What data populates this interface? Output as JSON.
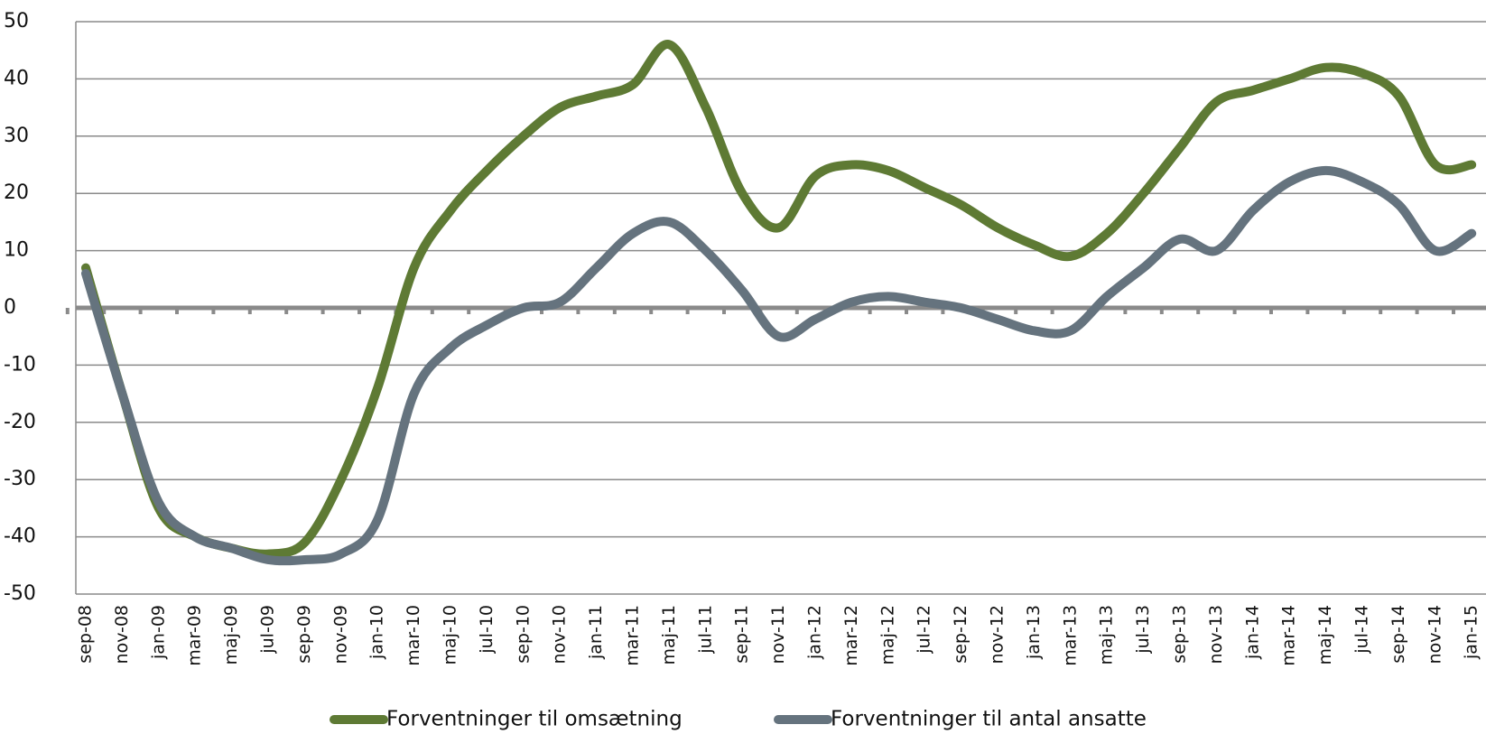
{
  "chart_data": {
    "type": "line",
    "categories": [
      "sep-08",
      "nov-08",
      "jan-09",
      "mar-09",
      "maj-09",
      "jul-09",
      "sep-09",
      "nov-09",
      "jan-10",
      "mar-10",
      "maj-10",
      "jul-10",
      "sep-10",
      "nov-10",
      "jan-11",
      "mar-11",
      "maj-11",
      "jul-11",
      "sep-11",
      "nov-11",
      "jan-12",
      "mar-12",
      "maj-12",
      "jul-12",
      "sep-12",
      "nov-12",
      "jan-13",
      "mar-13",
      "maj-13",
      "jul-13",
      "sep-13",
      "nov-13",
      "jan-14",
      "mar-14",
      "maj-14",
      "jul-14",
      "sep-14",
      "nov-14",
      "jan-15"
    ],
    "series": [
      {
        "name": "Forventninger til omsætning",
        "color": "#5e7a34",
        "values": [
          7,
          -15,
          -35,
          -40,
          -42,
          -43,
          -41,
          -30,
          -14,
          7,
          17,
          24,
          30,
          35,
          37,
          39,
          46,
          35,
          20,
          14,
          23,
          25,
          24,
          21,
          18,
          14,
          11,
          9,
          13,
          20,
          28,
          36,
          38,
          40,
          42,
          41,
          37,
          25,
          25
        ]
      },
      {
        "name": "Forventninger til antal ansatte",
        "color": "#65737e",
        "values": [
          6,
          -15,
          -34,
          -40,
          -42,
          -44,
          -44,
          -43,
          -37,
          -15,
          -7,
          -3,
          0,
          1,
          7,
          13,
          15,
          10,
          3,
          -5,
          -2,
          1,
          2,
          1,
          0,
          -2,
          -4,
          -4,
          2,
          7,
          12,
          10,
          17,
          22,
          24,
          22,
          18,
          10,
          13
        ]
      }
    ],
    "ylim": [
      -50,
      50
    ],
    "yticks": [
      -50,
      -40,
      -30,
      -20,
      -10,
      0,
      10,
      20,
      30,
      40,
      50
    ],
    "grid": true,
    "legend": "bottom"
  }
}
